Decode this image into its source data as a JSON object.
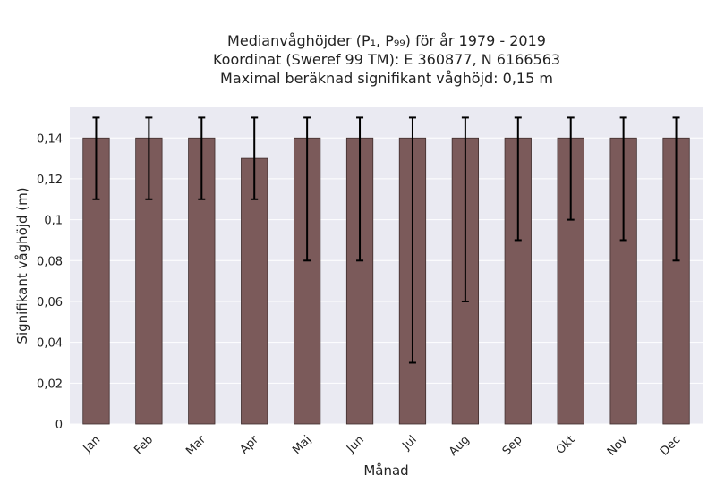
{
  "chart_data": {
    "type": "bar",
    "title_lines": [
      "Medianvåghöjder (P₁, P₉₉) för år 1979 - 2019",
      "Koordinat (Sweref 99 TM): E 360877, N 6166563",
      "Maximal beräknad signifikant våghöjd: 0,15 m"
    ],
    "xlabel": "Månad",
    "ylabel": "Signifikant våghöjd (m)",
    "categories": [
      "Jan",
      "Feb",
      "Mar",
      "Apr",
      "Maj",
      "Jun",
      "Jul",
      "Aug",
      "Sep",
      "Okt",
      "Nov",
      "Dec"
    ],
    "series": [
      {
        "values": [
          0.14,
          0.14,
          0.14,
          0.13,
          0.14,
          0.14,
          0.14,
          0.14,
          0.14,
          0.14,
          0.14,
          0.14
        ],
        "p1": [
          0.11,
          0.11,
          0.11,
          0.11,
          0.08,
          0.08,
          0.03,
          0.06,
          0.09,
          0.1,
          0.09,
          0.08
        ],
        "p99": [
          0.15,
          0.15,
          0.15,
          0.15,
          0.15,
          0.15,
          0.15,
          0.15,
          0.15,
          0.15,
          0.15,
          0.15
        ]
      }
    ],
    "ylim": [
      0,
      0.155
    ],
    "yticks": [
      0,
      0.02,
      0.04,
      0.06,
      0.08,
      0.1,
      0.12,
      0.14
    ],
    "ytick_labels": [
      "0",
      "0,02",
      "0,04",
      "0,06",
      "0,08",
      "0,1",
      "0,12",
      "0,14"
    ],
    "grid": true,
    "colors": {
      "bar": "#7b5a5a",
      "bar_edge": "#3f2d2d",
      "error": "#000000",
      "plot_bg": "#eaeaf2",
      "grid": "#ffffff"
    }
  }
}
